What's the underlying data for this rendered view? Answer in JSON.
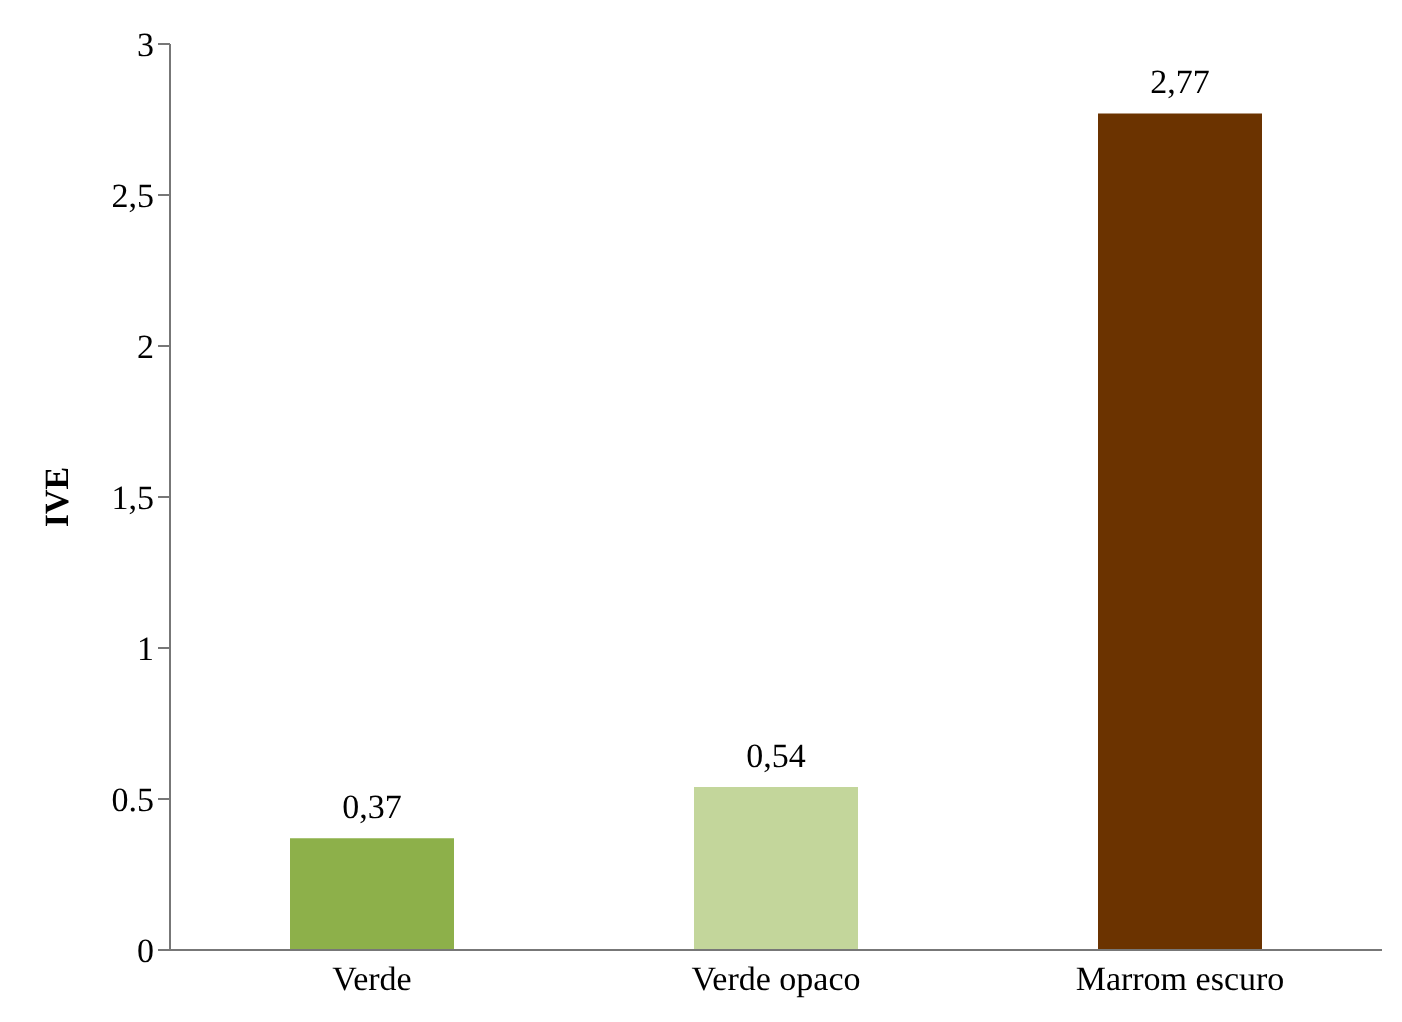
{
  "chart_data": {
    "type": "bar",
    "ylabel": "IVE",
    "categories": [
      "Verde",
      "Verde opaco",
      "Marrom escuro"
    ],
    "values": [
      0.37,
      0.54,
      2.77
    ],
    "value_labels": [
      "0,37",
      "0,54",
      "2,77"
    ],
    "colors": [
      "#8db04a",
      "#c3d69b",
      "#6b3300"
    ],
    "ylim": [
      0,
      3
    ],
    "yticks": [
      0,
      {
        "value": 0.5,
        "label": "0.5"
      },
      1,
      {
        "value": 1.5,
        "label": "1,5"
      },
      2,
      {
        "value": 2.5,
        "label": "2,5"
      },
      3
    ],
    "grid": false
  }
}
